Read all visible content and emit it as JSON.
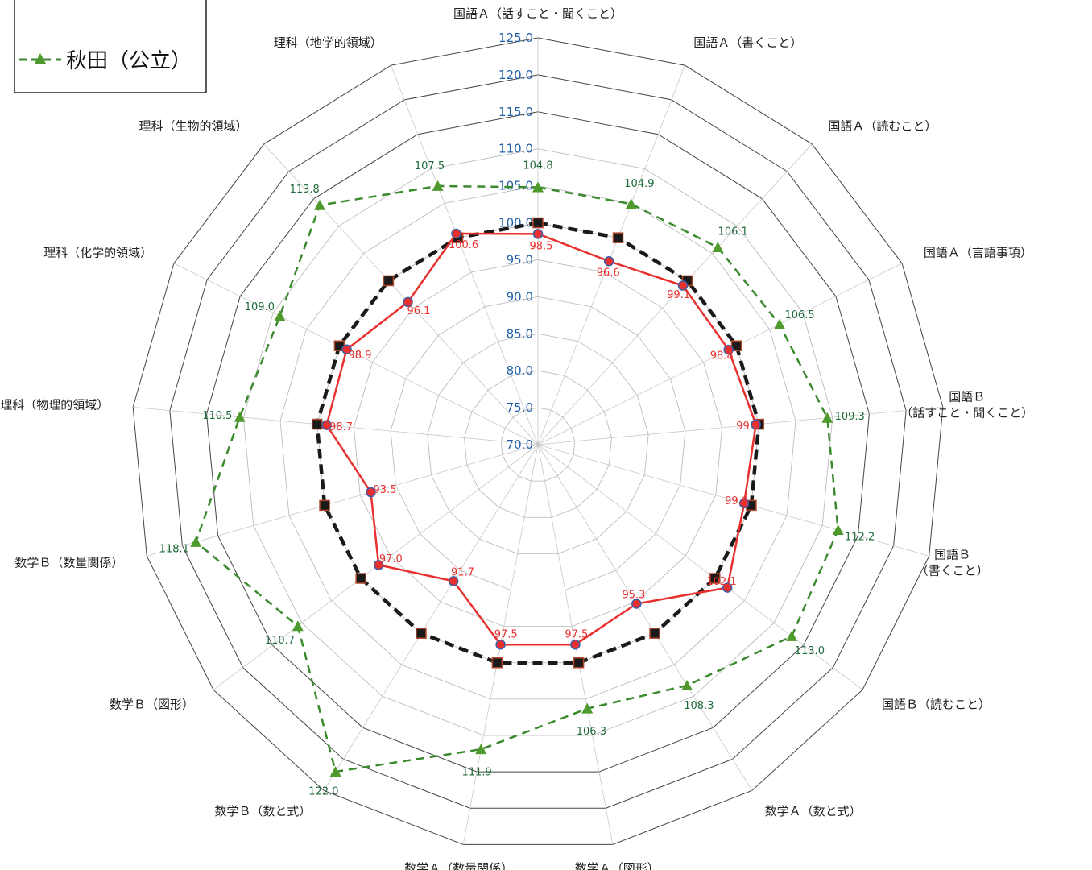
{
  "chart_data": {
    "type": "radar",
    "axis": {
      "min": 70,
      "max": 125,
      "step": 5,
      "tick_labels": [
        "70.0",
        "75.0",
        "80.0",
        "85.0",
        "90.0",
        "95.0",
        "100.0",
        "105.0",
        "110.0",
        "115.0",
        "120.0",
        "125.0"
      ]
    },
    "categories": [
      [
        "国語Ａ（話すこと・聞くこと）"
      ],
      [
        "国語Ａ（書くこと）"
      ],
      [
        "国語Ａ（読むこと）"
      ],
      [
        "国語Ａ（言語事項）"
      ],
      [
        "国語Ｂ",
        "（話すこと・聞くこと）"
      ],
      [
        "国語Ｂ",
        "（書くこと）"
      ],
      [
        "国語Ｂ（読むこと）"
      ],
      [
        "数学Ａ（数と式）"
      ],
      [
        "数学Ａ（図形）"
      ],
      [
        "数学Ａ（数量関係）"
      ],
      [
        "数学Ｂ（数と式）"
      ],
      [
        "数学Ｂ（図形）"
      ],
      [
        "数学Ｂ（数量関係）"
      ],
      [
        "理科（物理的領域）"
      ],
      [
        "理科（化学的領域）"
      ],
      [
        "理科（生物的領域）"
      ],
      [
        "理科（地学的領域）"
      ]
    ],
    "series": [
      {
        "name": "秋田（公立）",
        "color": "#3b8a2e",
        "line": "dashed",
        "marker": "triangle",
        "values": [
          104.8,
          104.9,
          106.1,
          106.5,
          109.3,
          112.2,
          113.0,
          108.3,
          106.3,
          111.9,
          122.0,
          110.7,
          118.1,
          110.5,
          109.0,
          113.8,
          107.5
        ],
        "labels": [
          "104.8",
          "104.9",
          "106.1",
          "106.5",
          "109.3",
          "112.2",
          "113.0",
          "108.3",
          "106.3",
          "111.9",
          "122.0",
          "110.7",
          "118.1",
          "110.5",
          "109.0",
          "113.8",
          "107.5"
        ]
      },
      {
        "name": "",
        "color": "#1a1a1a",
        "line": "dashed-bold",
        "marker": "square",
        "values": [
          100,
          100,
          100,
          100,
          100,
          100,
          100,
          100,
          100,
          100,
          100,
          100,
          100,
          100,
          100,
          100,
          100
        ],
        "labels": []
      },
      {
        "name": "",
        "color": "#e8312f",
        "line": "solid",
        "marker": "circle",
        "values": [
          98.5,
          96.6,
          99.1,
          98.8,
          99.6,
          99.0,
          102.1,
          95.3,
          97.5,
          97.5,
          91.7,
          97.0,
          93.5,
          98.7,
          98.9,
          96.1,
          100.6
        ],
        "labels": [
          "98.5",
          "96.6",
          "99.1",
          "98.8",
          "99.6",
          "99.0",
          "102.1",
          "95.3",
          "97.5",
          "97.5",
          "91.7",
          "97.0",
          "93.5",
          "98.7",
          "98.9",
          "96.1",
          "100.6"
        ]
      }
    ],
    "legend": {
      "placement": "top-left",
      "visible_entries": [
        {
          "series": "秋田（公立）",
          "label": "秋田（公立）"
        }
      ]
    }
  }
}
